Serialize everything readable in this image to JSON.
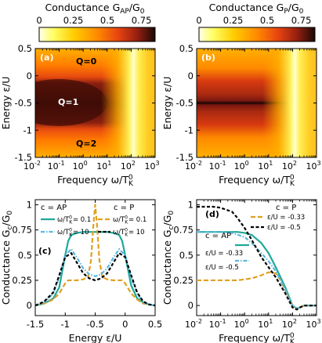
{
  "colors": {
    "ap_line": "#1fa89a",
    "p_line": "#e0a020",
    "ap_dash": "#5bb7df",
    "p_dash": "#000000"
  },
  "chart_data": [
    {
      "id": "a",
      "type": "heatmap",
      "panel_label": "(a)",
      "colorbar": {
        "title": "Conductance G",
        "title_sub": "AP",
        "title_tail": "/G",
        "title_tail_sub": "0",
        "ticks": [
          "0",
          "0.25",
          "0.5",
          "0.75"
        ],
        "range": [
          0,
          0.85
        ]
      },
      "xlabel": "Frequency ω/T",
      "xlabel_sup": "0",
      "xlabel_sub": "K",
      "ylabel": "Energy ε/U",
      "xscale": "log",
      "xlim": [
        0.01,
        1000
      ],
      "x_ticks": [
        "-2",
        "-1",
        "0",
        "1",
        "2",
        "3"
      ],
      "ylim": [
        -1.5,
        0.5
      ],
      "y_ticks": [
        "0.5",
        "0",
        "-0.5",
        "-1",
        "-1.5"
      ],
      "annotations": [
        "Q=0",
        "Q=1",
        "Q=2"
      ]
    },
    {
      "id": "b",
      "type": "heatmap",
      "panel_label": "(b)",
      "colorbar": {
        "title": "Conductance G",
        "title_sub": "P",
        "title_tail": "/G",
        "title_tail_sub": "0",
        "ticks": [
          "0",
          "0.25",
          "0.5",
          "0.75"
        ],
        "range": [
          0,
          0.85
        ]
      },
      "xlabel": "Frequency ω/T",
      "xlabel_sup": "0",
      "xlabel_sub": "K",
      "ylabel": "Energy ε/U",
      "xscale": "log",
      "xlim": [
        0.01,
        1000
      ],
      "x_ticks": [
        "-2",
        "-1",
        "0",
        "1",
        "2",
        "3"
      ],
      "ylim": [
        -1.5,
        0.5
      ],
      "y_ticks": [
        "0.5",
        "0",
        "-0.5",
        "-1",
        "-1.5"
      ]
    },
    {
      "id": "c",
      "type": "line",
      "panel_label": "(c)",
      "xlabel": "Energy ε/U",
      "ylabel": "Conductance G",
      "ylabel_sub": "c",
      "ylabel_tail": "/G",
      "ylabel_tail_sub": "0",
      "xlim": [
        -1.5,
        0.5
      ],
      "ylim": [
        -0.1,
        1.05
      ],
      "x_ticks": [
        "-1.5",
        "-1",
        "-0.5",
        "0",
        "0.5"
      ],
      "y_ticks": [
        "0",
        "0.25",
        "0.5",
        "0.75",
        "1"
      ],
      "legend": {
        "left_title": "c = AP",
        "right_title": "c = P",
        "left_entries": [
          "ω/T",
          "ω/T"
        ],
        "left_values": [
          "= 0.1",
          "= 10"
        ],
        "right_entries": [
          "ω/T",
          "ω/T"
        ],
        "right_values": [
          "= 0.1",
          "= 10"
        ],
        "sup": "0",
        "sub": "K"
      },
      "series": [
        {
          "style": "ap_solid",
          "x": [
            -1.5,
            -1.35,
            -1.2,
            -1.1,
            -1.0,
            -0.95,
            -0.9,
            -0.8,
            -0.7,
            -0.6,
            -0.5,
            -0.4,
            -0.3,
            -0.2,
            -0.1,
            -0.05,
            0.0,
            0.1,
            0.2,
            0.3,
            0.4,
            0.5
          ],
          "y": [
            0.0,
            0.02,
            0.07,
            0.18,
            0.5,
            0.64,
            0.7,
            0.72,
            0.73,
            0.73,
            0.73,
            0.73,
            0.73,
            0.72,
            0.7,
            0.64,
            0.5,
            0.2,
            0.07,
            0.03,
            0.01,
            0.0
          ]
        },
        {
          "style": "p_dash_orange",
          "x": [
            -1.5,
            -1.35,
            -1.2,
            -1.1,
            -1.0,
            -0.95,
            -0.9,
            -0.8,
            -0.7,
            -0.62,
            -0.57,
            -0.53,
            -0.5,
            -0.47,
            -0.43,
            -0.38,
            -0.3,
            -0.2,
            -0.1,
            -0.05,
            0.0,
            0.1,
            0.2,
            0.3,
            0.4,
            0.5
          ],
          "y": [
            0.0,
            0.02,
            0.06,
            0.12,
            0.22,
            0.25,
            0.25,
            0.25,
            0.26,
            0.28,
            0.45,
            0.8,
            1.0,
            0.8,
            0.45,
            0.28,
            0.26,
            0.25,
            0.25,
            0.25,
            0.22,
            0.12,
            0.06,
            0.02,
            0.01,
            0.0
          ]
        },
        {
          "style": "ap_dashdot",
          "x": [
            -1.5,
            -1.35,
            -1.2,
            -1.1,
            -1.0,
            -0.9,
            -0.8,
            -0.7,
            -0.6,
            -0.5,
            -0.4,
            -0.3,
            -0.2,
            -0.1,
            0.0,
            0.1,
            0.2,
            0.3,
            0.4,
            0.5
          ],
          "y": [
            0.0,
            0.03,
            0.12,
            0.28,
            0.5,
            0.56,
            0.47,
            0.37,
            0.31,
            0.29,
            0.31,
            0.37,
            0.47,
            0.56,
            0.5,
            0.28,
            0.12,
            0.03,
            0.01,
            0.0
          ]
        },
        {
          "style": "p_dash_black",
          "x": [
            -1.5,
            -1.35,
            -1.2,
            -1.1,
            -1.0,
            -0.9,
            -0.8,
            -0.7,
            -0.6,
            -0.5,
            -0.4,
            -0.3,
            -0.2,
            -0.1,
            0.0,
            0.1,
            0.2,
            0.3,
            0.4,
            0.5
          ],
          "y": [
            0.0,
            0.04,
            0.13,
            0.3,
            0.48,
            0.52,
            0.42,
            0.32,
            0.27,
            0.25,
            0.27,
            0.32,
            0.42,
            0.52,
            0.48,
            0.3,
            0.13,
            0.04,
            0.01,
            0.0
          ]
        }
      ]
    },
    {
      "id": "d",
      "type": "line",
      "panel_label": "(d)",
      "xlabel": "Frequency ω/T",
      "xlabel_sup": "0",
      "xlabel_sub": "K",
      "ylabel": "Conductance G",
      "ylabel_sub": "c",
      "ylabel_tail": "/G",
      "ylabel_tail_sub": "0",
      "xscale": "log",
      "xlim": [
        0.01,
        1000
      ],
      "x_ticks": [
        "-2",
        "-1",
        "0",
        "1",
        "2",
        "3"
      ],
      "ylim": [
        -0.1,
        1.05
      ],
      "y_ticks": [
        "0",
        "0.25",
        "0.5",
        "0.75",
        "1"
      ],
      "legend": {
        "right_title": "c = P",
        "right_entries": [
          "ε/U = -0.33",
          "ε/U = -0.5"
        ],
        "left_title": "c = AP",
        "left_entries": [
          "ε/U = -0.33",
          "ε/U = -0.5"
        ]
      },
      "series": [
        {
          "style": "ap_solid",
          "x": [
            0.01,
            0.1,
            0.5,
            1,
            2,
            5,
            10,
            20,
            50,
            100,
            150,
            200,
            300,
            500,
            1000
          ],
          "y": [
            0.73,
            0.73,
            0.73,
            0.72,
            0.7,
            0.62,
            0.52,
            0.38,
            0.18,
            0.0,
            -0.03,
            -0.02,
            0.0,
            0.0,
            0.0
          ]
        },
        {
          "style": "p_dash_orange",
          "x": [
            0.01,
            0.1,
            0.5,
            1,
            2,
            5,
            10,
            20,
            30,
            50,
            100,
            150,
            200,
            300,
            500,
            1000
          ],
          "y": [
            0.25,
            0.25,
            0.25,
            0.26,
            0.27,
            0.3,
            0.33,
            0.32,
            0.26,
            0.15,
            0.0,
            -0.03,
            -0.02,
            0.0,
            0.0,
            0.0
          ]
        },
        {
          "style": "ap_dashdot",
          "x": [
            0.01,
            0.1,
            0.3,
            1,
            2,
            5,
            10,
            20,
            50,
            100,
            150,
            200,
            300,
            500,
            1000
          ],
          "y": [
            0.73,
            0.73,
            0.72,
            0.68,
            0.62,
            0.52,
            0.44,
            0.34,
            0.16,
            0.0,
            -0.03,
            -0.02,
            0.0,
            0.0,
            0.0
          ]
        },
        {
          "style": "p_dash_black",
          "x": [
            0.01,
            0.05,
            0.1,
            0.3,
            0.5,
            1,
            2,
            5,
            10,
            20,
            50,
            100,
            150,
            200,
            300,
            500,
            1000
          ],
          "y": [
            0.98,
            0.98,
            0.97,
            0.93,
            0.87,
            0.77,
            0.65,
            0.48,
            0.38,
            0.28,
            0.12,
            -0.02,
            -0.04,
            -0.02,
            0.0,
            0.0,
            0.0
          ]
        }
      ]
    }
  ]
}
